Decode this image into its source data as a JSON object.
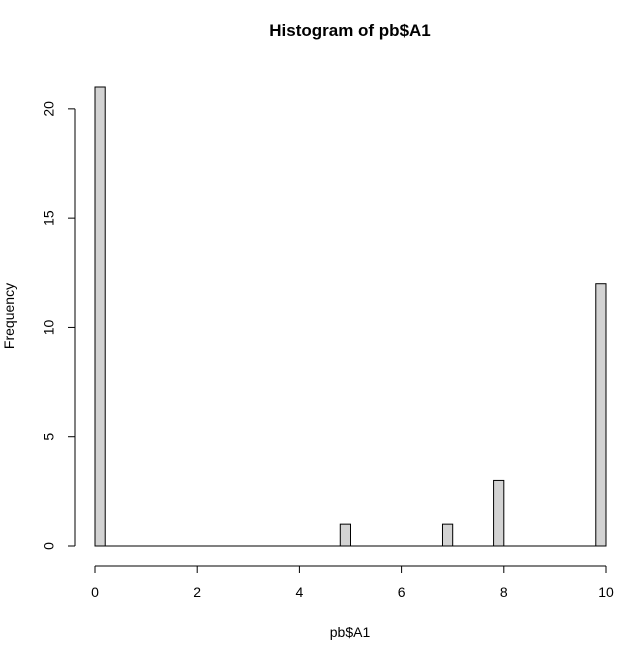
{
  "chart_data": {
    "type": "bar",
    "title": "Histogram of pb$A1",
    "xlabel": "pb$A1",
    "ylabel": "Frequency",
    "xlim": [
      0,
      10
    ],
    "ylim": [
      0,
      21
    ],
    "x_ticks": [
      0,
      2,
      4,
      6,
      8,
      10
    ],
    "y_ticks": [
      0,
      5,
      10,
      15,
      20
    ],
    "bin_width": 0.2,
    "bins": [
      {
        "start": 0.0,
        "end": 0.2,
        "count": 21
      },
      {
        "start": 4.8,
        "end": 5.0,
        "count": 1
      },
      {
        "start": 6.8,
        "end": 7.0,
        "count": 1
      },
      {
        "start": 7.8,
        "end": 8.0,
        "count": 3
      },
      {
        "start": 9.8,
        "end": 10.0,
        "count": 12
      }
    ],
    "bar_fill": "#d3d3d3",
    "bar_stroke": "#000000",
    "grid": false
  }
}
